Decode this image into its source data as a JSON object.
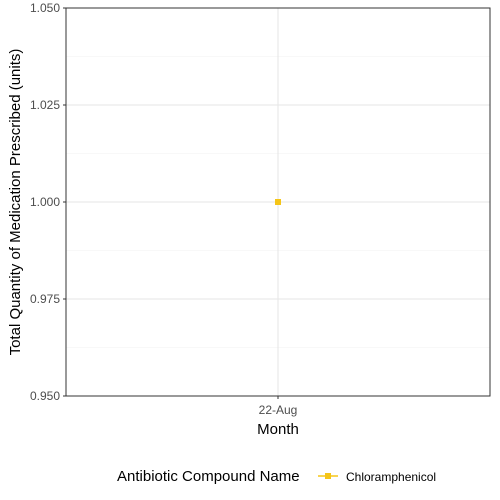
{
  "chart_data": {
    "type": "line",
    "title": "",
    "xlabel": "Month",
    "ylabel": "Total Quantity of Medication Prescribed (units)",
    "categories": [
      "22-Aug"
    ],
    "ylim": [
      0.95,
      1.05
    ],
    "yticks": [
      "0.950",
      "0.975",
      "1.000",
      "1.025",
      "1.050"
    ],
    "grid": true,
    "legend_position": "bottom",
    "legend_title": "Antibiotic Compound Name",
    "series": [
      {
        "name": "Chloramphenicol",
        "color": "#f5c518",
        "values": [
          1.0
        ]
      }
    ]
  }
}
